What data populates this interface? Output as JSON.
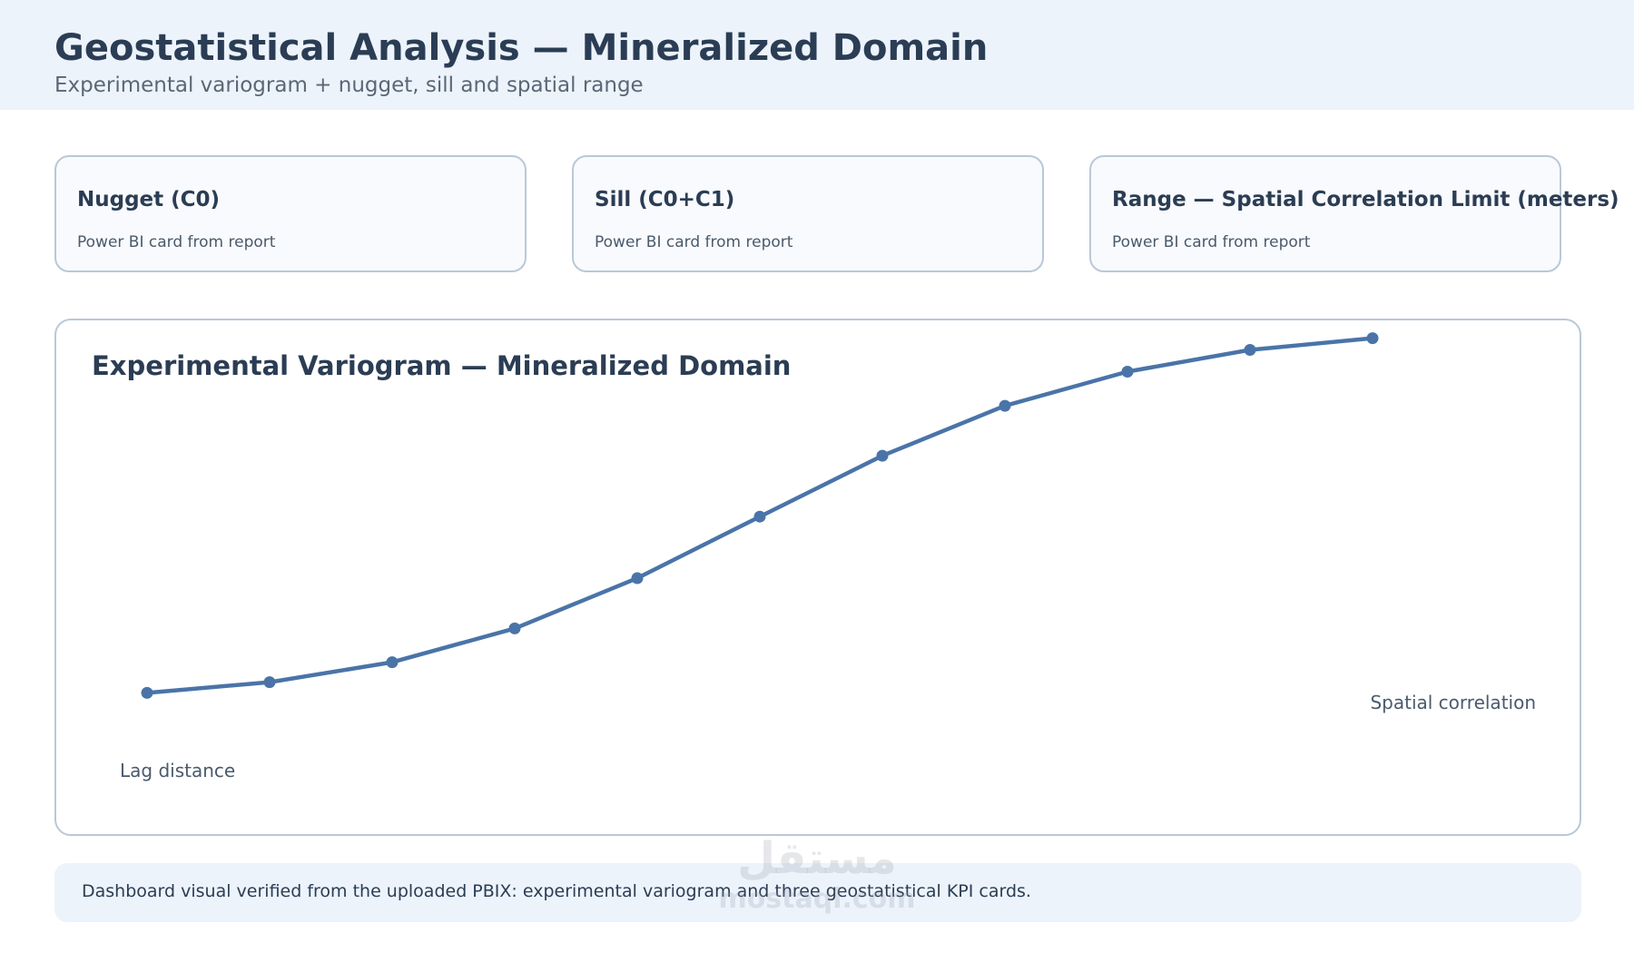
{
  "header": {
    "title": "Geostatistical Analysis — Mineralized Domain",
    "subtitle": "Experimental variogram + nugget, sill and spatial range"
  },
  "kpi_cards": [
    {
      "title": "Nugget (C0)",
      "subtitle": "Power BI card from report"
    },
    {
      "title": "Sill (C0+C1)",
      "subtitle": "Power BI card from report"
    },
    {
      "title": "Range — Spatial Correlation Limit (meters)",
      "subtitle": "Power BI card from report"
    }
  ],
  "chart_data": {
    "type": "line",
    "title": "Experimental Variogram — Mineralized Domain",
    "xlabel": "Lag distance",
    "ylabel": "",
    "annotation": "Spatial correlation",
    "x": [
      1,
      2,
      3,
      4,
      5,
      6,
      7,
      8,
      9,
      10,
      11
    ],
    "series": [
      {
        "values": [
          0.05,
          0.08,
          0.136,
          0.231,
          0.372,
          0.545,
          0.716,
          0.856,
          0.952,
          1.013,
          1.046
        ]
      }
    ],
    "xlim": [
      1,
      11
    ],
    "ylim": [
      0,
      1.05
    ],
    "grid": false,
    "legend": "none",
    "line_color": "#4a74a8"
  },
  "footer": {
    "text": "Dashboard visual verified from the uploaded PBIX: experimental variogram and three geostatistical KPI cards."
  },
  "watermark": {
    "arabic": "مستقل",
    "latin": "mostaql.com"
  }
}
